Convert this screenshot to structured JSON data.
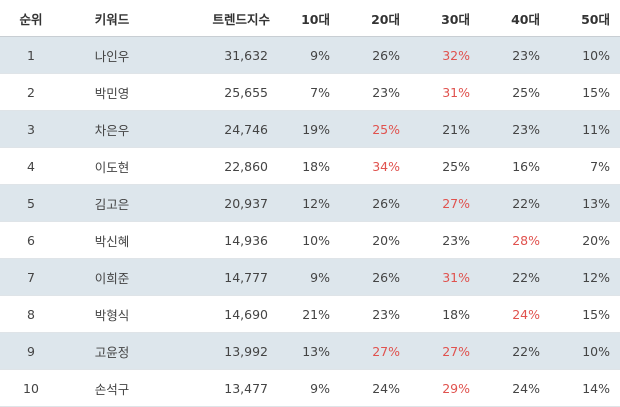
{
  "table": {
    "headers": {
      "rank": "순위",
      "keyword": "키워드",
      "trend_index": "트렌드지수",
      "age10": "10대",
      "age20": "20대",
      "age30": "30대",
      "age40": "40대",
      "age50": "50대"
    },
    "highlight_color": "#e0524e",
    "rows": [
      {
        "rank": "1",
        "keyword": "나인우",
        "trend_index": "31,632",
        "age10": "9%",
        "age20": "26%",
        "age30": "32%",
        "age40": "23%",
        "age50": "10%",
        "highlight": "age30"
      },
      {
        "rank": "2",
        "keyword": "박민영",
        "trend_index": "25,655",
        "age10": "7%",
        "age20": "23%",
        "age30": "31%",
        "age40": "25%",
        "age50": "15%",
        "highlight": "age30"
      },
      {
        "rank": "3",
        "keyword": "차은우",
        "trend_index": "24,746",
        "age10": "19%",
        "age20": "25%",
        "age30": "21%",
        "age40": "23%",
        "age50": "11%",
        "highlight": "age20"
      },
      {
        "rank": "4",
        "keyword": "이도현",
        "trend_index": "22,860",
        "age10": "18%",
        "age20": "34%",
        "age30": "25%",
        "age40": "16%",
        "age50": "7%",
        "highlight": "age20"
      },
      {
        "rank": "5",
        "keyword": "김고은",
        "trend_index": "20,937",
        "age10": "12%",
        "age20": "26%",
        "age30": "27%",
        "age40": "22%",
        "age50": "13%",
        "highlight": "age30"
      },
      {
        "rank": "6",
        "keyword": "박신혜",
        "trend_index": "14,936",
        "age10": "10%",
        "age20": "20%",
        "age30": "23%",
        "age40": "28%",
        "age50": "20%",
        "highlight": "age40"
      },
      {
        "rank": "7",
        "keyword": "이희준",
        "trend_index": "14,777",
        "age10": "9%",
        "age20": "26%",
        "age30": "31%",
        "age40": "22%",
        "age50": "12%",
        "highlight": "age30"
      },
      {
        "rank": "8",
        "keyword": "박형식",
        "trend_index": "14,690",
        "age10": "21%",
        "age20": "23%",
        "age30": "18%",
        "age40": "24%",
        "age50": "15%",
        "highlight": "age40"
      },
      {
        "rank": "9",
        "keyword": "고윤정",
        "trend_index": "13,992",
        "age10": "13%",
        "age20": "27%",
        "age30": "27%",
        "age40": "22%",
        "age50": "10%",
        "highlight": "age20,age30"
      },
      {
        "rank": "10",
        "keyword": "손석구",
        "trend_index": "13,477",
        "age10": "9%",
        "age20": "24%",
        "age30": "29%",
        "age40": "24%",
        "age50": "14%",
        "highlight": "age30"
      }
    ]
  }
}
